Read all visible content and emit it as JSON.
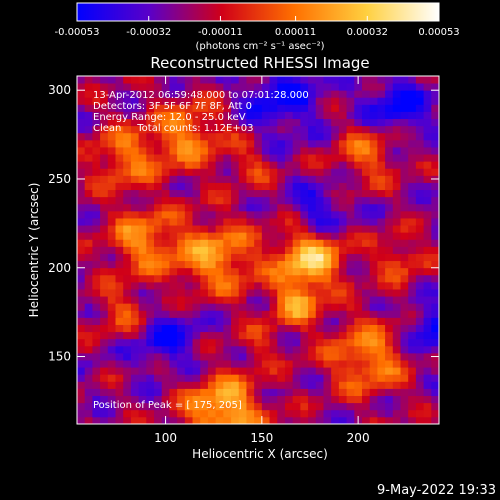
{
  "chart_data": {
    "type": "heatmap",
    "title": "Reconstructed RHESSI Image",
    "xlabel": "Heliocentric X (arcsec)",
    "ylabel": "Heliocentric Y (arcsec)",
    "xlim": [
      54,
      242
    ],
    "ylim": [
      112,
      308
    ],
    "xticks": [
      100,
      150,
      200
    ],
    "yticks": [
      150,
      200,
      250,
      300
    ],
    "colorbar": {
      "unit_label": "(photons cm⁻² s⁻¹ asec⁻²)",
      "range": [
        -0.00053,
        0.00053
      ],
      "tick_labels": [
        "-0.00053",
        "-0.00032",
        "-0.00011",
        "0.00011",
        "0.00032",
        "0.00053"
      ],
      "tick_values": [
        -0.00053,
        -0.00032,
        -0.00011,
        0.00011,
        0.00032,
        0.00053
      ],
      "colormap": [
        "#0000ff",
        "#5a00c8",
        "#d00018",
        "#ff7000",
        "#ffd040",
        "#ffffff"
      ]
    },
    "annotations": [
      "13-Apr-2012 06:59:48.000 to 07:01:28.000",
      "Detectors: 3F 5F 6F 7F 8F, Att 0",
      "Energy Range: 12.0 - 25.0 keV",
      "Clean     Total counts: 1.12E+03"
    ],
    "peak_label": "Position of Peak = [",
    "peak_value": "175, 205]",
    "peak": [
      175,
      205
    ],
    "grid": false,
    "sources": [
      {
        "x": 175,
        "y": 205,
        "r": 12,
        "v": 0.00053
      },
      {
        "x": 126,
        "y": 206,
        "r": 15,
        "v": 0.0004
      },
      {
        "x": 88,
        "y": 215,
        "r": 13,
        "v": 0.00035
      },
      {
        "x": 130,
        "y": 120,
        "r": 14,
        "v": 0.0005
      },
      {
        "x": 112,
        "y": 275,
        "r": 14,
        "v": 0.00034
      },
      {
        "x": 78,
        "y": 262,
        "r": 13,
        "v": 0.0003
      },
      {
        "x": 205,
        "y": 150,
        "r": 15,
        "v": 0.00036
      },
      {
        "x": 168,
        "y": 180,
        "r": 9,
        "v": 0.00036
      },
      {
        "x": 205,
        "y": 265,
        "r": 12,
        "v": 0.00027
      },
      {
        "x": 78,
        "y": 175,
        "r": 10,
        "v": 0.00024
      },
      {
        "x": 145,
        "y": 258,
        "r": 8,
        "v": 0.00018
      },
      {
        "x": 222,
        "y": 205,
        "r": 10,
        "v": 0.00022
      },
      {
        "x": 150,
        "y": 158,
        "r": 8,
        "v": 0.00015
      },
      {
        "x": 220,
        "y": 290,
        "r": 12,
        "v": -0.0003
      },
      {
        "x": 160,
        "y": 295,
        "r": 14,
        "v": -0.00028
      },
      {
        "x": 100,
        "y": 160,
        "r": 12,
        "v": -0.00026
      },
      {
        "x": 180,
        "y": 232,
        "r": 10,
        "v": -0.00025
      },
      {
        "x": 238,
        "y": 165,
        "r": 10,
        "v": -0.0003
      }
    ]
  },
  "footer": {
    "date": "9-May-2022 19:33"
  }
}
